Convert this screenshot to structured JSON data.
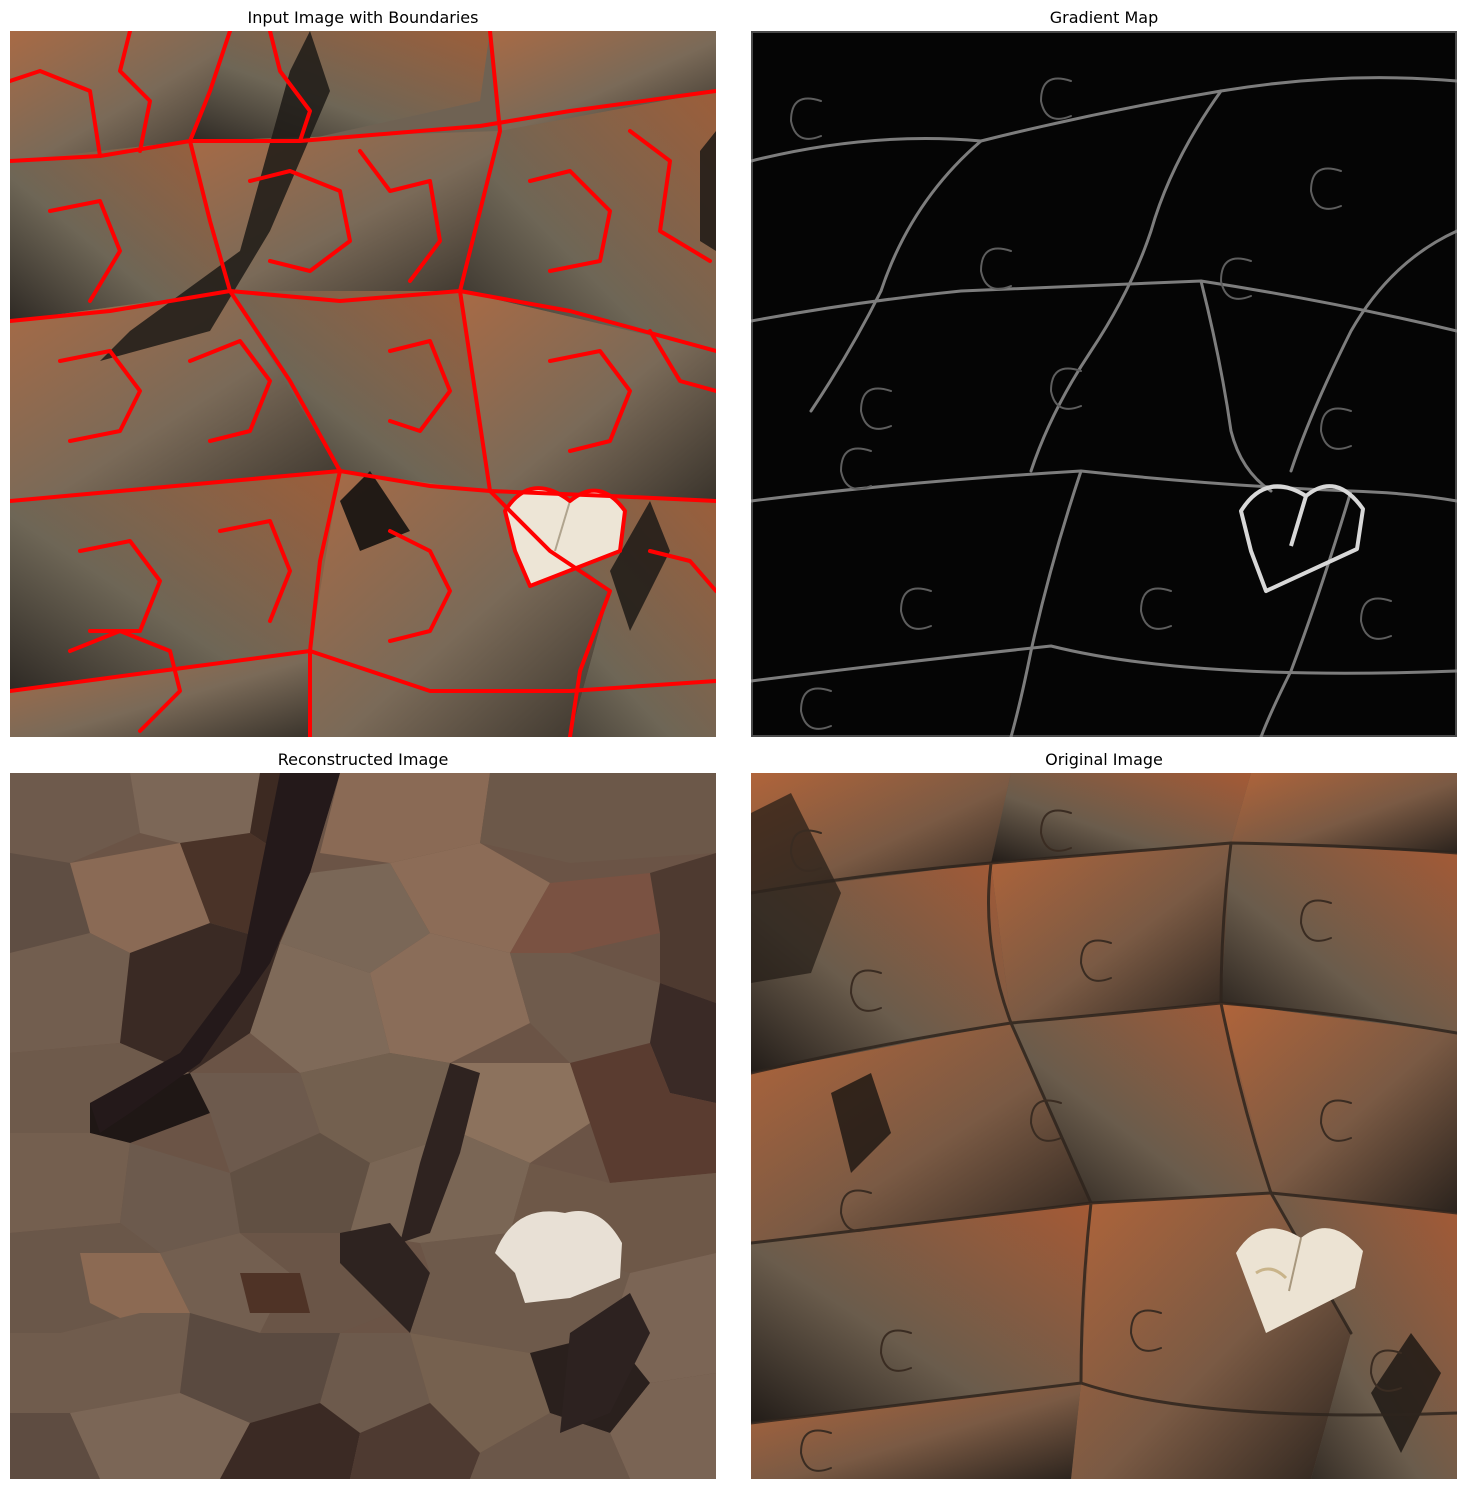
{
  "panels": [
    {
      "title": "Input Image with Boundaries"
    },
    {
      "title": "Gradient Map"
    },
    {
      "title": "Reconstructed Image"
    },
    {
      "title": "Original Image"
    }
  ],
  "colors": {
    "boundary": "#ff0000",
    "terracotta": "#a5603a",
    "slate": "#5c5a4e",
    "shadow": "#1c1815",
    "heart": "#ede5d6",
    "gradient_bg": "#050505",
    "gradient_edge": "#9a9a9a"
  }
}
